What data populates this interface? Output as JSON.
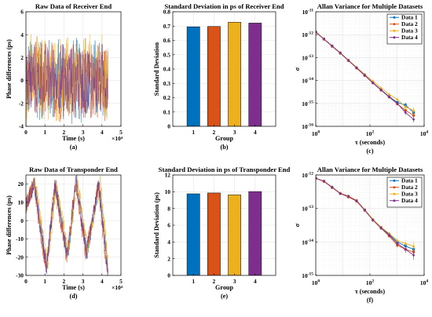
{
  "colors": {
    "blue": "#0072BD",
    "orange": "#D95319",
    "yellow": "#EDB120",
    "purple": "#7E2F8E",
    "grid": "#e6e6e6"
  },
  "chart_data": [
    {
      "id": "a",
      "type": "line",
      "title": "Raw Data of Receiver End",
      "xlabel": "Time (s)",
      "ylabel": "Phase differences (ps)",
      "caption": "(a)",
      "x_exponent": "×10⁴",
      "xlim": [
        0,
        5
      ],
      "ylim": [
        -4,
        6
      ],
      "xticks": [
        0,
        1,
        2,
        3,
        4,
        5
      ],
      "yticks": [
        -4,
        -2,
        0,
        2,
        4,
        6
      ],
      "data_extent_x": [
        0,
        4.32
      ],
      "series": [
        {
          "color_key": "blue",
          "spread": 4.2,
          "center": 0.05
        },
        {
          "color_key": "orange",
          "spread": 4.0,
          "center": 0.0
        },
        {
          "color_key": "yellow",
          "spread": 4.3,
          "center": 0.1
        },
        {
          "color_key": "purple",
          "spread": 3.6,
          "center": 0.05
        }
      ],
      "grid": true
    },
    {
      "id": "b",
      "type": "bar",
      "title": "Standard Deviation in ps of Receiver End",
      "xlabel": "Group",
      "ylabel": "Standard Deviation",
      "caption": "(b)",
      "categories": [
        "1",
        "2",
        "3",
        "4"
      ],
      "values": [
        0.695,
        0.697,
        0.727,
        0.721
      ],
      "ylim": [
        0,
        0.8
      ],
      "yticks": [
        "0",
        "0.1",
        "0.2",
        "0.3",
        "0.4",
        "0.5",
        "0.6",
        "0.7",
        "0.8"
      ],
      "grid": true
    },
    {
      "id": "c",
      "type": "line",
      "title": "Allan Variance for Multiple Datasets",
      "xlabel": "τ (seconds)",
      "ylabel": "σ",
      "caption": "(c)",
      "xscale": "log",
      "yscale": "log",
      "xlim": [
        1,
        10000
      ],
      "ylim": [
        1e-16,
        1e-11
      ],
      "xticks": [
        {
          "v": 1,
          "b": "10",
          "e": "0"
        },
        {
          "v": 100,
          "b": "10",
          "e": "2"
        },
        {
          "v": 10000,
          "b": "10",
          "e": "4"
        }
      ],
      "yticks": [
        {
          "v": 1e-16,
          "b": "10",
          "e": "-16"
        },
        {
          "v": 1e-15,
          "b": "10",
          "e": "-15"
        },
        {
          "v": 1e-14,
          "b": "10",
          "e": "-14"
        },
        {
          "v": 1e-13,
          "b": "10",
          "e": "-13"
        },
        {
          "v": 1e-12,
          "b": "10",
          "e": "-12"
        },
        {
          "v": 1e-11,
          "b": "10",
          "e": "-11"
        }
      ],
      "x": [
        1,
        2,
        4,
        8,
        16,
        32,
        64,
        128,
        256,
        512,
        1024,
        2048,
        4096
      ],
      "series": [
        {
          "name": "Data 1",
          "color_key": "blue",
          "values": [
            1.3e-12,
            6.5e-13,
            3.2e-13,
            1.6e-13,
            7.6e-14,
            3.6e-14,
            1.7e-14,
            8.1e-15,
            4e-15,
            2e-15,
            1.1e-15,
            8.5e-16,
            4e-16
          ]
        },
        {
          "name": "Data 2",
          "color_key": "orange",
          "values": [
            1.3e-12,
            6.4e-13,
            3.1e-13,
            1.55e-13,
            7.4e-14,
            3.5e-14,
            1.65e-14,
            7.8e-15,
            3.8e-15,
            1.9e-15,
            9.5e-16,
            5e-16,
            3e-16
          ]
        },
        {
          "name": "Data 3",
          "color_key": "yellow",
          "values": [
            1.35e-12,
            6.6e-13,
            3.3e-13,
            1.65e-13,
            7.9e-14,
            3.8e-14,
            1.9e-14,
            9.5e-15,
            4.8e-15,
            2.5e-15,
            1.5e-15,
            7e-16,
            5e-16
          ]
        },
        {
          "name": "Data 4",
          "color_key": "purple",
          "values": [
            1.3e-12,
            6.4e-13,
            3.2e-13,
            1.6e-13,
            7.5e-14,
            3.6e-14,
            1.7e-14,
            8e-15,
            3.9e-15,
            1.9e-15,
            1e-15,
            4e-16,
            2e-16
          ]
        }
      ],
      "legend": "top-right",
      "grid": true
    },
    {
      "id": "d",
      "type": "line",
      "title": "Raw Data of Transponder End",
      "xlabel": "Time (s)",
      "ylabel": "Phase differences (ps)",
      "caption": "(d)",
      "x_exponent": "×10⁴",
      "xlim": [
        0,
        5
      ],
      "ylim": [
        -30,
        25
      ],
      "xticks": [
        0,
        1,
        2,
        3,
        4,
        5
      ],
      "yticks": [
        -30,
        -20,
        -10,
        0,
        10,
        20
      ],
      "data_extent_x": [
        0,
        4.32
      ],
      "series": [
        {
          "color_key": "blue",
          "phase": 0.0,
          "offset": 0
        },
        {
          "color_key": "orange",
          "phase": 0.05,
          "offset": -1
        },
        {
          "color_key": "yellow",
          "phase": -0.05,
          "offset": 1
        },
        {
          "color_key": "purple",
          "phase": 0.02,
          "offset": 0
        }
      ],
      "grid": true
    },
    {
      "id": "e",
      "type": "bar",
      "title": "Standard Deviation in ps of Transponder End",
      "xlabel": "Group",
      "ylabel": "Standard Deviation (ps)",
      "caption": "(e)",
      "categories": [
        "1",
        "2",
        "3",
        "4"
      ],
      "values": [
        9.75,
        9.85,
        9.62,
        10.02
      ],
      "ylim": [
        0,
        12
      ],
      "yticks": [
        "0",
        "2",
        "4",
        "6",
        "8",
        "10",
        "12"
      ],
      "grid": true
    },
    {
      "id": "f",
      "type": "line",
      "title": "Allan Variance for Multiple Datasets",
      "xlabel": "τ (seconds)",
      "ylabel": "σ",
      "caption": "(f)",
      "xscale": "log",
      "yscale": "log",
      "xlim": [
        1,
        10000
      ],
      "ylim": [
        1e-15,
        1e-12
      ],
      "xticks": [
        {
          "v": 1,
          "b": "10",
          "e": "0"
        },
        {
          "v": 100,
          "b": "10",
          "e": "2"
        },
        {
          "v": 10000,
          "b": "10",
          "e": "4"
        }
      ],
      "yticks": [
        {
          "v": 1e-15,
          "b": "10",
          "e": "-15"
        },
        {
          "v": 1e-14,
          "b": "10",
          "e": "-14"
        },
        {
          "v": 1e-13,
          "b": "10",
          "e": "-13"
        },
        {
          "v": 1e-12,
          "b": "10",
          "e": "-12"
        }
      ],
      "x": [
        1,
        2,
        4,
        8,
        16,
        32,
        64,
        128,
        256,
        512,
        1024,
        2048,
        4096
      ],
      "series": [
        {
          "name": "Data 1",
          "color_key": "blue",
          "values": [
            8e-13,
            6.5e-13,
            4.3e-13,
            2.8e-13,
            2.3e-13,
            1.7e-13,
            9e-14,
            4.6e-14,
            2.7e-14,
            1.7e-14,
            1e-14,
            7.5e-15,
            6e-15
          ]
        },
        {
          "name": "Data 2",
          "color_key": "orange",
          "values": [
            8e-13,
            6.4e-13,
            4.2e-13,
            2.8e-13,
            2.2e-13,
            1.65e-13,
            8.8e-14,
            4.5e-14,
            2.6e-14,
            1.5e-14,
            8e-15,
            6e-15,
            5e-15
          ]
        },
        {
          "name": "Data 3",
          "color_key": "yellow",
          "values": [
            8.1e-13,
            6.6e-13,
            4.4e-13,
            2.9e-13,
            2.35e-13,
            1.75e-13,
            9.3e-14,
            4.8e-14,
            2.8e-14,
            1.8e-14,
            1.1e-14,
            9e-15,
            7.5e-15
          ]
        },
        {
          "name": "Data 4",
          "color_key": "purple",
          "values": [
            8e-13,
            6.5e-13,
            4.3e-13,
            2.8e-13,
            2.3e-13,
            1.7e-13,
            9e-14,
            4.5e-14,
            2.6e-14,
            1.6e-14,
            9e-15,
            6e-15,
            4e-15
          ]
        }
      ],
      "legend": "top-right",
      "grid": true
    }
  ]
}
